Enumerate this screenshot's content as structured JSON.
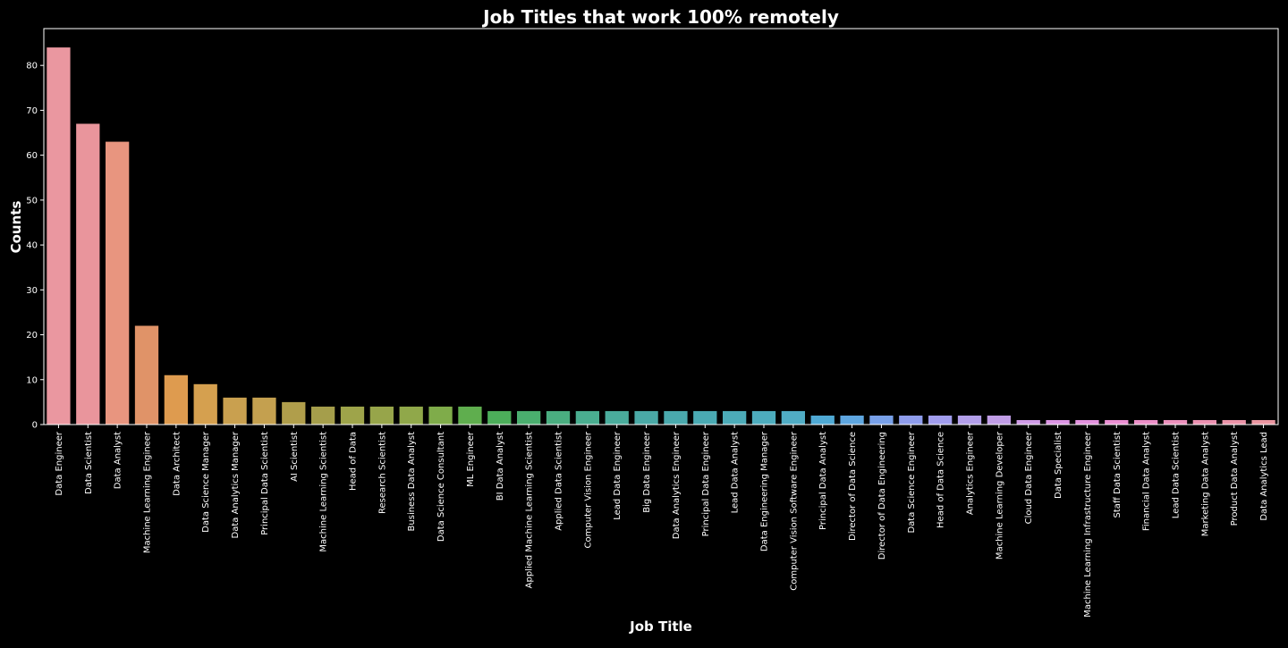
{
  "chart_data": {
    "type": "bar",
    "title": "Job Titles that work 100% remotely",
    "xlabel": "Job Title",
    "ylabel": "Counts",
    "ylim": [
      0,
      88.2
    ],
    "yticks": [
      0,
      10,
      20,
      30,
      40,
      50,
      60,
      70,
      80
    ],
    "grid": false,
    "legend": "none",
    "categories": [
      "Data Engineer",
      "Data Scientist",
      "Data Analyst",
      "Machine Learning Engineer",
      "Data Architect",
      "Data Science Manager",
      "Data Analytics Manager",
      "Principal Data Scientist",
      "AI Scientist",
      "Machine Learning Scientist",
      "Head of Data",
      "Research Scientist",
      "Business Data Analyst",
      "Data Science Consultant",
      "ML Engineer",
      "BI Data Analyst",
      "Applied Machine Learning Scientist",
      "Applied Data Scientist",
      "Computer Vision Engineer",
      "Lead Data Engineer",
      "Big Data Engineer",
      "Data Analytics Engineer",
      "Principal Data Engineer",
      "Lead Data Analyst",
      "Data Engineering Manager",
      "Computer Vision Software Engineer",
      "Principal Data Analyst",
      "Director of Data Science",
      "Director of Data Engineering",
      "Data Science Engineer",
      "Head of Data Science",
      "Analytics Engineer",
      "Machine Learning Developer",
      "Cloud Data Engineer",
      "Data Specialist",
      "Machine Learning Infrastructure Engineer",
      "Staff Data Scientist",
      "Financial Data Analyst",
      "Lead Data Scientist",
      "Marketing Data Analyst",
      "Product Data Analyst",
      "Data Analytics Lead"
    ],
    "values": [
      84,
      67,
      63,
      22,
      11,
      9,
      6,
      6,
      5,
      4,
      4,
      4,
      4,
      4,
      4,
      3,
      3,
      3,
      3,
      3,
      3,
      3,
      3,
      3,
      3,
      3,
      2,
      2,
      2,
      2,
      2,
      2,
      2,
      1,
      1,
      1,
      1,
      1,
      1,
      1,
      1,
      1
    ],
    "colors": [
      "#ea97a0",
      "#e9959c",
      "#e8957f",
      "#e09368",
      "#de9b4f",
      "#d5a04f",
      "#c9a04f",
      "#c4a04f",
      "#b09e4b",
      "#a59e4b",
      "#9ea44a",
      "#97a54a",
      "#90a84a",
      "#7fac4a",
      "#5fae4e",
      "#4cae5a",
      "#4aae6e",
      "#4aae80",
      "#4aae90",
      "#4aac9c",
      "#4aa9a6",
      "#4aa9ad",
      "#4aaab3",
      "#4cabb8",
      "#4dacbd",
      "#50acc4",
      "#4fa9d4",
      "#5ea6e0",
      "#78a0e8",
      "#8e9ceb",
      "#a19ded",
      "#b29ee9",
      "#c09de6",
      "#cf9be6",
      "#db95e4",
      "#e292de",
      "#ea8fd3",
      "#eb8fc8",
      "#eb90bc",
      "#eb91b1",
      "#ea93a8",
      "#ea96a1"
    ],
    "axis_color": "#ffffff",
    "background": "#000000"
  }
}
